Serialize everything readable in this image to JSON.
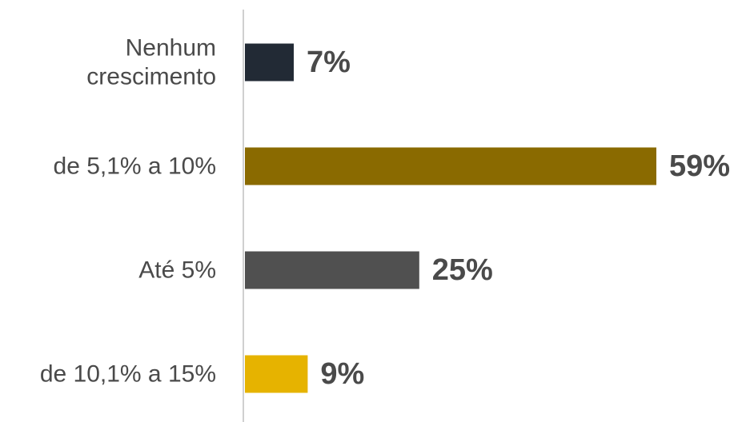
{
  "chart_data": {
    "type": "bar",
    "orientation": "horizontal",
    "title": "",
    "xlabel": "",
    "ylabel": "",
    "categories": [
      "Nenhum crescimento",
      "de 5,1% a 10%",
      "Até 5%",
      "de 10,1% a 15%"
    ],
    "category_lines": [
      [
        "Nenhum",
        "crescimento"
      ],
      [
        "de 5,1% a 10%"
      ],
      [
        "Até 5%"
      ],
      [
        "de 10,1% a 15%"
      ]
    ],
    "values": [
      7,
      59,
      25,
      9
    ],
    "value_labels": [
      "7%",
      "59%",
      "25%",
      "9%"
    ],
    "colors": [
      "#222a35",
      "#8a6a00",
      "#505050",
      "#e6b300"
    ],
    "xlim": [
      0,
      59
    ],
    "grid": false,
    "legend": "none"
  }
}
